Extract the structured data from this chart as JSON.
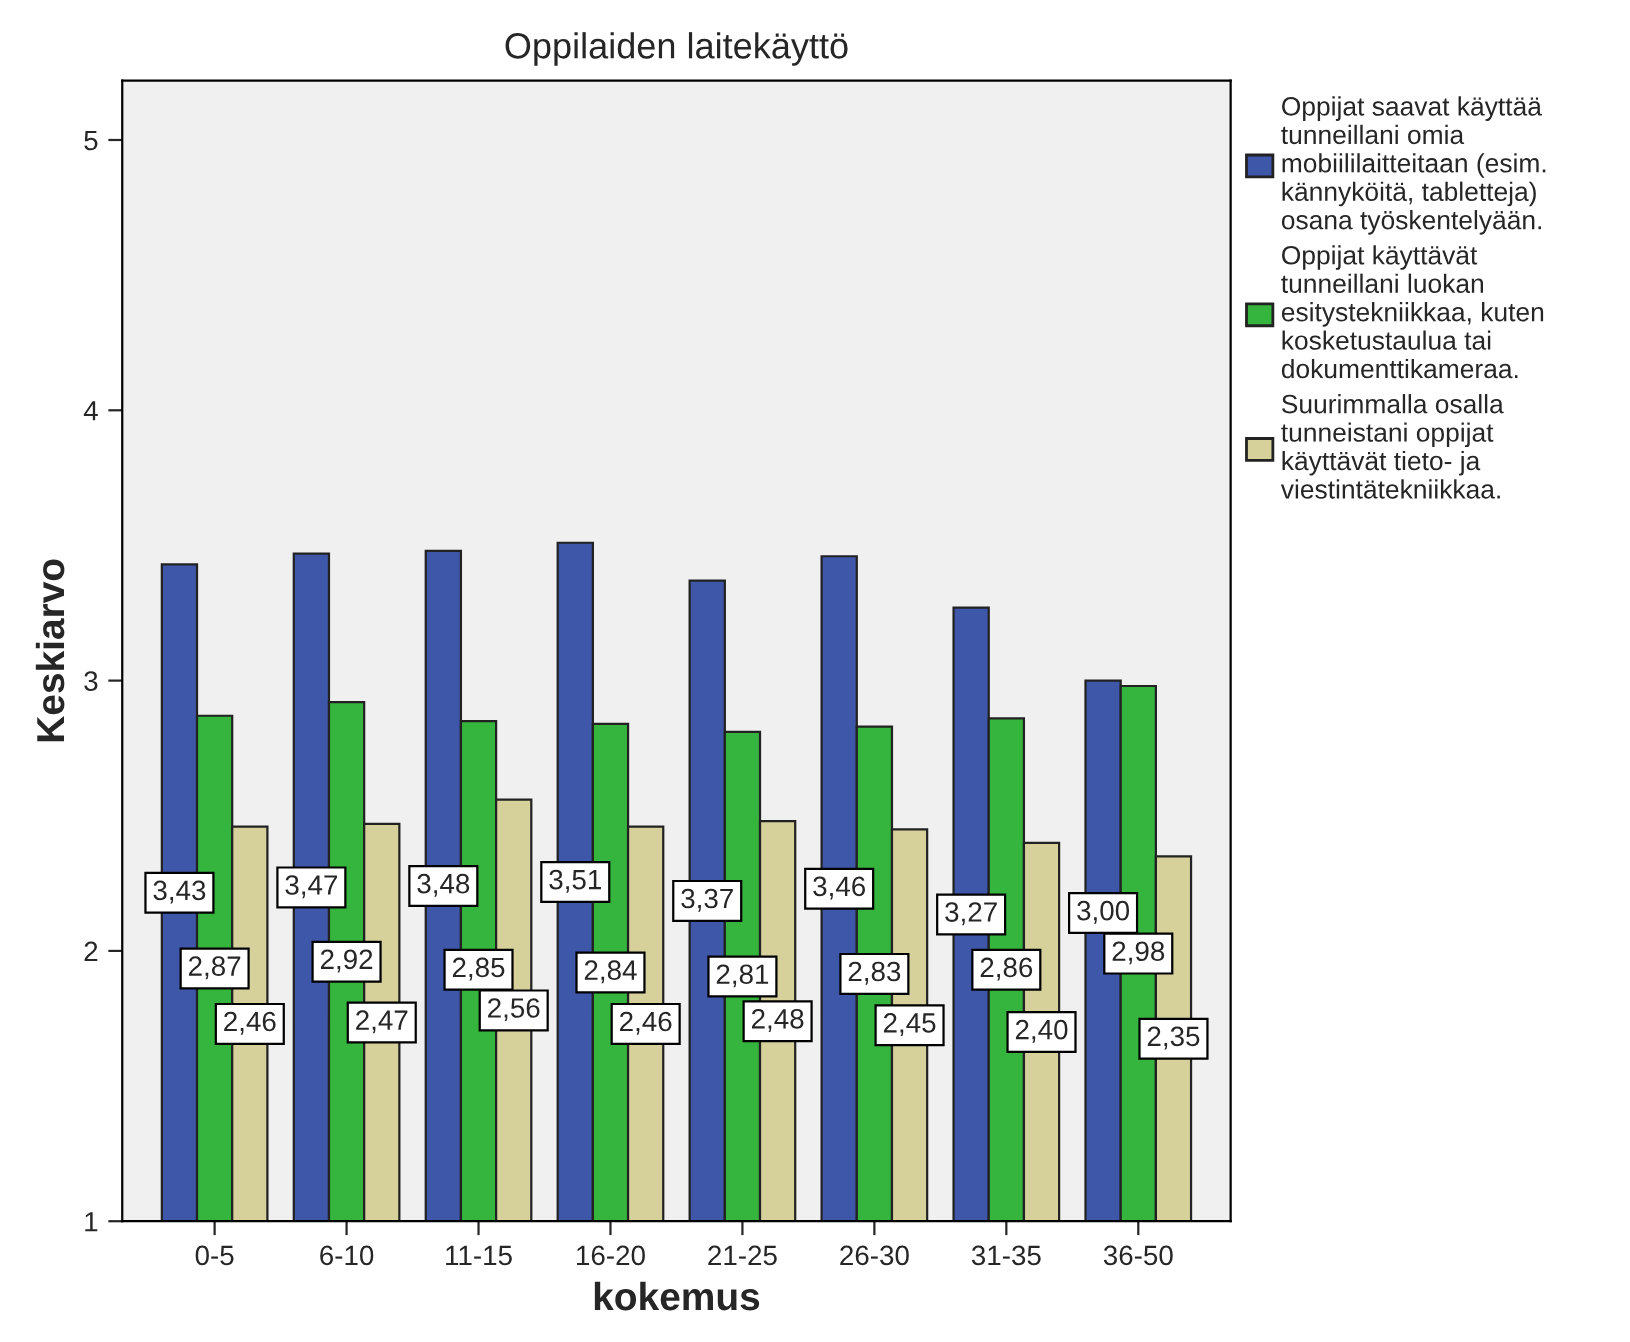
{
  "chart_data": {
    "type": "bar",
    "title": "Oppilaiden laitekäyttö",
    "xlabel": "kokemus",
    "ylabel": "Keskiarvo",
    "categories": [
      "0-5",
      "6-10",
      "11-15",
      "16-20",
      "21-25",
      "26-30",
      "31-35",
      "36-50"
    ],
    "series": [
      {
        "name": "Oppijat saavat käyttää tunneillani omia mobiililaitteitaan (esim. kännyköitä, tabletteja) osana työskentelyään.",
        "color": "#3f57a8",
        "values": [
          3.43,
          3.47,
          3.48,
          3.51,
          3.37,
          3.46,
          3.27,
          3.0
        ],
        "value_labels": [
          "3,43",
          "3,47",
          "3,48",
          "3,51",
          "3,37",
          "3,46",
          "3,27",
          "3,00"
        ]
      },
      {
        "name": "Oppijat käyttävät tunneillani luokan esitystekniikkaa, kuten kosketustaulua tai dokumenttikameraa.",
        "color": "#36b53e",
        "values": [
          2.87,
          2.92,
          2.85,
          2.84,
          2.81,
          2.83,
          2.86,
          2.98
        ],
        "value_labels": [
          "2,87",
          "2,92",
          "2,85",
          "2,84",
          "2,81",
          "2,83",
          "2,86",
          "2,98"
        ]
      },
      {
        "name": "Suurimmalla osalla tunneistani oppijat käyttävät tieto- ja viestintätekniikkaa.",
        "color": "#d6d09b",
        "values": [
          2.46,
          2.47,
          2.56,
          2.46,
          2.48,
          2.45,
          2.4,
          2.35
        ],
        "value_labels": [
          "2,46",
          "2,47",
          "2,56",
          "2,46",
          "2,48",
          "2,45",
          "2,40",
          "2,35"
        ]
      }
    ],
    "ylim": [
      1,
      5.22
    ],
    "yticks": [
      1,
      2,
      3,
      4,
      5
    ],
    "grid": false,
    "legend": "top right"
  }
}
